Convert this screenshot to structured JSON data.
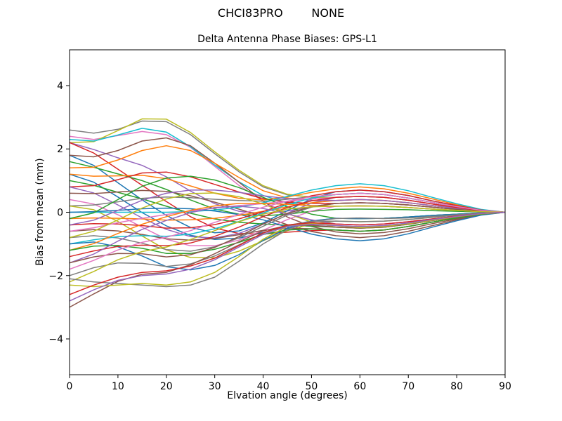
{
  "figure": {
    "suptitle": "CHCI83PRO        NONE",
    "background": "#ffffff"
  },
  "chart_data": {
    "type": "line",
    "title": "Delta Antenna Phase Biases: GPS-L1",
    "xlabel": "Elvation angle (degrees)",
    "ylabel": "Bias from mean (mm)",
    "xlim": [
      0,
      90
    ],
    "ylim": [
      -5.13,
      5.13
    ],
    "xticks": [
      0,
      10,
      20,
      30,
      40,
      50,
      60,
      70,
      80,
      90
    ],
    "yticks": [
      -4,
      -2,
      0,
      2,
      4
    ],
    "grid": false,
    "legend": "none",
    "axis_color": "#000000",
    "x": [
      0,
      5,
      10,
      15,
      20,
      25,
      30,
      35,
      40,
      45,
      50,
      55,
      60,
      65,
      70,
      75,
      80,
      85,
      90
    ],
    "series": [
      {
        "name": "curve-01",
        "color": "#7f7f7f",
        "values": [
          2.6,
          2.5,
          2.62,
          2.88,
          2.86,
          2.45,
          1.85,
          1.28,
          0.8,
          0.55,
          0.48,
          0.56,
          0.6,
          0.56,
          0.45,
          0.31,
          0.18,
          0.06,
          0
        ]
      },
      {
        "name": "curve-02",
        "color": "#e377c2",
        "values": [
          2.4,
          2.3,
          2.42,
          2.55,
          2.45,
          2.05,
          1.45,
          0.85,
          0.35,
          -0.05,
          -0.25,
          -0.37,
          -0.4,
          -0.37,
          -0.3,
          -0.21,
          -0.12,
          -0.04,
          0
        ]
      },
      {
        "name": "curve-03",
        "color": "#bcbd22",
        "values": [
          2.2,
          2.23,
          2.58,
          2.95,
          2.94,
          2.52,
          1.91,
          1.33,
          0.84,
          0.57,
          0.47,
          0.47,
          0.5,
          0.47,
          0.38,
          0.26,
          0.15,
          0.05,
          0
        ]
      },
      {
        "name": "curve-04",
        "color": "#9467bd",
        "values": [
          2.2,
          1.98,
          1.72,
          1.48,
          1.12,
          0.67,
          0.27,
          0.03,
          -0.04,
          0.04,
          0.18,
          0.28,
          0.3,
          0.28,
          0.23,
          0.16,
          0.09,
          0.03,
          0
        ]
      },
      {
        "name": "curve-05",
        "color": "#d62728",
        "values": [
          2.2,
          1.87,
          1.36,
          0.85,
          0.34,
          -0.14,
          -0.5,
          -0.67,
          -0.69,
          -0.63,
          -0.58,
          -0.56,
          -0.6,
          -0.56,
          -0.45,
          -0.31,
          -0.18,
          -0.06,
          0
        ]
      },
      {
        "name": "curve-06",
        "color": "#17becf",
        "values": [
          2.3,
          2.25,
          2.44,
          2.65,
          2.53,
          2.07,
          1.49,
          0.96,
          0.53,
          0.29,
          0.2,
          0.19,
          0.2,
          0.19,
          0.15,
          0.1,
          0.06,
          0.02,
          0
        ]
      },
      {
        "name": "curve-07",
        "color": "#1f77b4",
        "values": [
          1.8,
          1.48,
          0.93,
          0.39,
          -0.1,
          -0.48,
          -0.65,
          -0.59,
          -0.34,
          0.05,
          0.42,
          0.65,
          0.7,
          0.65,
          0.53,
          0.36,
          0.21,
          0.07,
          0
        ]
      },
      {
        "name": "curve-08",
        "color": "#8c564b",
        "values": [
          1.8,
          1.75,
          1.95,
          2.25,
          2.35,
          2.1,
          1.55,
          0.95,
          0.35,
          -0.15,
          -0.45,
          -0.62,
          -0.68,
          -0.64,
          -0.52,
          -0.36,
          -0.21,
          -0.07,
          0
        ]
      },
      {
        "name": "curve-09",
        "color": "#2ca02c",
        "values": [
          1.6,
          1.42,
          1.21,
          1.0,
          0.72,
          0.39,
          0.1,
          -0.06,
          -0.11,
          -0.06,
          0.03,
          0.09,
          0.1,
          0.09,
          0.08,
          0.05,
          0.03,
          0.01,
          0
        ]
      },
      {
        "name": "curve-10",
        "color": "#ff7f0e",
        "values": [
          1.4,
          1.42,
          1.65,
          1.95,
          2.1,
          1.95,
          1.55,
          1.1,
          0.68,
          0.45,
          0.38,
          0.37,
          0.4,
          0.37,
          0.3,
          0.21,
          0.12,
          0.04,
          0
        ]
      },
      {
        "name": "curve-11",
        "color": "#1f77b4",
        "values": [
          1.2,
          0.95,
          0.48,
          -0.01,
          -0.43,
          -0.73,
          -0.86,
          -0.82,
          -0.64,
          -0.44,
          -0.27,
          -0.19,
          -0.2,
          -0.19,
          -0.15,
          -0.1,
          -0.06,
          -0.02,
          0
        ]
      },
      {
        "name": "curve-12",
        "color": "#ff7f0e",
        "values": [
          1.2,
          1.14,
          1.15,
          1.17,
          1.06,
          0.83,
          0.6,
          0.44,
          0.39,
          0.48,
          0.63,
          0.74,
          0.8,
          0.74,
          0.6,
          0.42,
          0.24,
          0.08,
          0
        ]
      },
      {
        "name": "curve-13",
        "color": "#2ca02c",
        "values": [
          1.0,
          0.85,
          0.63,
          0.42,
          0.19,
          -0.03,
          -0.21,
          -0.32,
          -0.37,
          -0.41,
          -0.44,
          -0.47,
          -0.5,
          -0.47,
          -0.38,
          -0.26,
          -0.15,
          -0.05,
          0
        ]
      },
      {
        "name": "curve-14",
        "color": "#d62728",
        "values": [
          0.8,
          0.84,
          1.03,
          1.24,
          1.27,
          1.12,
          0.88,
          0.64,
          0.43,
          0.32,
          0.28,
          0.28,
          0.3,
          0.28,
          0.23,
          0.16,
          0.09,
          0.03,
          0
        ]
      },
      {
        "name": "curve-15",
        "color": "#9467bd",
        "values": [
          0.8,
          0.61,
          0.23,
          -0.18,
          -0.54,
          -0.77,
          -0.81,
          -0.67,
          -0.38,
          -0.03,
          0.29,
          0.47,
          0.5,
          0.47,
          0.38,
          0.26,
          0.15,
          0.05,
          0
        ]
      },
      {
        "name": "curve-16",
        "color": "#8c564b",
        "values": [
          0.6,
          0.59,
          0.64,
          0.69,
          0.66,
          0.52,
          0.32,
          0.1,
          -0.14,
          -0.39,
          -0.61,
          -0.74,
          -0.8,
          -0.74,
          -0.6,
          -0.42,
          -0.24,
          -0.08,
          0
        ]
      },
      {
        "name": "curve-17",
        "color": "#e377c2",
        "values": [
          0.4,
          0.26,
          -0.08,
          -0.47,
          -0.85,
          -1.06,
          -1.06,
          -0.88,
          -0.57,
          -0.23,
          0.04,
          0.19,
          0.2,
          0.19,
          0.15,
          0.1,
          0.06,
          0.02,
          0
        ]
      },
      {
        "name": "curve-18",
        "color": "#7f7f7f",
        "values": [
          0.2,
          0.23,
          0.33,
          0.44,
          0.48,
          0.46,
          0.41,
          0.37,
          0.35,
          0.41,
          0.49,
          0.56,
          0.6,
          0.56,
          0.45,
          0.31,
          0.18,
          0.06,
          0
        ]
      },
      {
        "name": "curve-19",
        "color": "#bcbd22",
        "values": [
          0.2,
          0.08,
          -0.29,
          -0.75,
          -1.19,
          -1.43,
          -1.44,
          -1.23,
          -0.9,
          -0.58,
          -0.37,
          -0.28,
          -0.3,
          -0.28,
          -0.23,
          -0.16,
          -0.09,
          -0.03,
          0
        ]
      },
      {
        "name": "curve-20",
        "color": "#17becf",
        "values": [
          0.0,
          0.0,
          0.0,
          0.0,
          0.0,
          0.02,
          0.07,
          0.16,
          0.3,
          0.5,
          0.7,
          0.84,
          0.9,
          0.84,
          0.68,
          0.47,
          0.27,
          0.09,
          0
        ]
      },
      {
        "name": "curve-21",
        "color": "#1f77b4",
        "values": [
          0.0,
          0.02,
          0.06,
          0.11,
          0.13,
          0.11,
          0.04,
          -0.07,
          -0.24,
          -0.47,
          -0.69,
          -0.84,
          -0.9,
          -0.84,
          -0.68,
          -0.47,
          -0.27,
          -0.09,
          0
        ]
      },
      {
        "name": "curve-22",
        "color": "#ff7f0e",
        "values": [
          -0.2,
          -0.18,
          -0.19,
          -0.21,
          -0.25,
          -0.24,
          -0.19,
          -0.1,
          0.03,
          0.17,
          0.3,
          0.37,
          0.4,
          0.37,
          0.3,
          0.21,
          0.12,
          0.04,
          0
        ]
      },
      {
        "name": "curve-23",
        "color": "#2ca02c",
        "values": [
          -0.2,
          -0.02,
          0.4,
          0.82,
          1.08,
          1.14,
          1.02,
          0.78,
          0.47,
          0.17,
          -0.06,
          -0.19,
          -0.2,
          -0.19,
          -0.15,
          -0.1,
          -0.06,
          -0.02,
          0
        ]
      },
      {
        "name": "curve-24",
        "color": "#d62728",
        "values": [
          -0.4,
          -0.36,
          -0.37,
          -0.42,
          -0.5,
          -0.49,
          -0.39,
          -0.21,
          0.02,
          0.29,
          0.52,
          0.65,
          0.7,
          0.65,
          0.53,
          0.36,
          0.21,
          0.07,
          0
        ]
      },
      {
        "name": "curve-25",
        "color": "#9467bd",
        "values": [
          -0.4,
          -0.25,
          0.06,
          0.38,
          0.6,
          0.7,
          0.7,
          0.63,
          0.52,
          0.43,
          0.38,
          0.37,
          0.4,
          0.37,
          0.3,
          0.21,
          0.12,
          0.04,
          0
        ]
      },
      {
        "name": "curve-26",
        "color": "#8c564b",
        "values": [
          -0.6,
          -0.55,
          -0.59,
          -0.7,
          -0.84,
          -0.88,
          -0.83,
          -0.71,
          -0.57,
          -0.51,
          -0.52,
          -0.56,
          -0.6,
          -0.56,
          -0.45,
          -0.31,
          -0.18,
          -0.06,
          0
        ]
      },
      {
        "name": "curve-27",
        "color": "#e377c2",
        "values": [
          -0.6,
          -0.49,
          -0.33,
          -0.19,
          -0.07,
          0.04,
          0.13,
          0.21,
          0.27,
          0.35,
          0.42,
          0.47,
          0.5,
          0.47,
          0.38,
          0.26,
          0.15,
          0.05,
          0
        ]
      },
      {
        "name": "curve-28",
        "color": "#7f7f7f",
        "values": [
          -0.8,
          -0.74,
          -0.81,
          -0.98,
          -1.18,
          -1.23,
          -1.09,
          -0.81,
          -0.44,
          -0.09,
          0.16,
          0.28,
          0.3,
          0.28,
          0.23,
          0.16,
          0.09,
          0.03,
          0
        ]
      },
      {
        "name": "curve-29",
        "color": "#bcbd22",
        "values": [
          -0.8,
          -0.6,
          -0.24,
          0.13,
          0.42,
          0.59,
          0.61,
          0.49,
          0.26,
          -0.04,
          -0.31,
          -0.47,
          -0.5,
          -0.47,
          -0.38,
          -0.26,
          -0.15,
          -0.05,
          0
        ]
      },
      {
        "name": "curve-30",
        "color": "#17becf",
        "values": [
          -1.0,
          -0.87,
          -0.77,
          -0.74,
          -0.76,
          -0.69,
          -0.52,
          -0.29,
          -0.02,
          0.24,
          0.45,
          0.56,
          0.6,
          0.56,
          0.45,
          0.31,
          0.18,
          0.06,
          0
        ]
      },
      {
        "name": "curve-31",
        "color": "#1f77b4",
        "values": [
          -1.0,
          -0.94,
          -1.09,
          -1.38,
          -1.72,
          -1.82,
          -1.68,
          -1.34,
          -0.89,
          -0.51,
          -0.28,
          -0.19,
          -0.2,
          -0.19,
          -0.15,
          -0.1,
          -0.06,
          -0.02,
          0
        ]
      },
      {
        "name": "curve-32",
        "color": "#ff7f0e",
        "values": [
          -1.2,
          -0.99,
          -0.67,
          -0.38,
          -0.14,
          0.06,
          0.2,
          0.28,
          0.28,
          0.25,
          0.21,
          0.19,
          0.2,
          0.19,
          0.15,
          0.1,
          0.06,
          0.02,
          0
        ]
      },
      {
        "name": "curve-33",
        "color": "#2ca02c",
        "values": [
          -1.2,
          -1.07,
          -1.05,
          -1.14,
          -1.3,
          -1.3,
          -1.17,
          -0.95,
          -0.7,
          -0.56,
          -0.53,
          -0.56,
          -0.6,
          -0.56,
          -0.45,
          -0.31,
          -0.18,
          -0.06,
          0
        ]
      },
      {
        "name": "curve-34",
        "color": "#d62728",
        "values": [
          -1.4,
          -1.22,
          -1.08,
          -1.04,
          -1.06,
          -0.97,
          -0.76,
          -0.47,
          -0.14,
          0.15,
          0.36,
          0.47,
          0.5,
          0.47,
          0.38,
          0.26,
          0.15,
          0.05,
          0
        ]
      },
      {
        "name": "curve-35",
        "color": "#9467bd",
        "values": [
          -1.6,
          -1.32,
          -0.91,
          -0.54,
          -0.26,
          -0.01,
          0.15,
          0.19,
          0.12,
          -0.05,
          -0.24,
          -0.37,
          -0.4,
          -0.37,
          -0.3,
          -0.21,
          -0.12,
          -0.04,
          0
        ]
      },
      {
        "name": "curve-36",
        "color": "#8c564b",
        "values": [
          -1.6,
          -1.41,
          -1.3,
          -1.31,
          -1.41,
          -1.34,
          -1.11,
          -0.77,
          -0.37,
          -0.04,
          0.18,
          0.28,
          0.3,
          0.28,
          0.23,
          0.16,
          0.09,
          0.03,
          0
        ]
      },
      {
        "name": "curve-37",
        "color": "#e377c2",
        "values": [
          -1.8,
          -1.52,
          -1.19,
          -0.95,
          -0.79,
          -0.58,
          -0.32,
          -0.07,
          0.16,
          0.35,
          0.49,
          0.56,
          0.6,
          0.56,
          0.45,
          0.31,
          0.18,
          0.06,
          0
        ]
      },
      {
        "name": "curve-38",
        "color": "#7f7f7f",
        "values": [
          -2.0,
          -1.75,
          -1.6,
          -1.61,
          -1.71,
          -1.63,
          -1.38,
          -1.03,
          -0.66,
          -0.41,
          -0.29,
          -0.28,
          -0.3,
          -0.28,
          -0.23,
          -0.16,
          -0.09,
          -0.03,
          0
        ]
      },
      {
        "name": "curve-39",
        "color": "#bcbd22",
        "values": [
          -2.2,
          -1.87,
          -1.5,
          -1.24,
          -1.1,
          -0.86,
          -0.58,
          -0.3,
          -0.06,
          0.1,
          0.17,
          0.19,
          0.2,
          0.19,
          0.15,
          0.1,
          0.06,
          0.02,
          0
        ]
      },
      {
        "name": "curve-40",
        "color": "#8c564b",
        "values": [
          -3.0,
          -2.58,
          -2.18,
          -1.96,
          -1.9,
          -1.66,
          -1.31,
          -0.93,
          -0.59,
          -0.42,
          -0.41,
          -0.47,
          -0.5,
          -0.47,
          -0.38,
          -0.26,
          -0.15,
          -0.05,
          0
        ]
      },
      {
        "name": "curve-41",
        "color": "#7f7f7f",
        "values": [
          -2.1,
          -2.2,
          -2.25,
          -2.3,
          -2.35,
          -2.3,
          -2.05,
          -1.55,
          -1.0,
          -0.55,
          -0.3,
          -0.2,
          -0.18,
          -0.2,
          -0.18,
          -0.13,
          -0.08,
          -0.03,
          0
        ]
      },
      {
        "name": "curve-42",
        "color": "#bcbd22",
        "values": [
          -2.3,
          -2.35,
          -2.3,
          -2.25,
          -2.3,
          -2.2,
          -1.9,
          -1.4,
          -0.85,
          -0.45,
          -0.35,
          -0.42,
          -0.48,
          -0.45,
          -0.36,
          -0.25,
          -0.14,
          -0.05,
          0
        ]
      },
      {
        "name": "curve-43",
        "color": "#d62728",
        "values": [
          -2.6,
          -2.3,
          -2.05,
          -1.9,
          -1.85,
          -1.7,
          -1.45,
          -1.05,
          -0.65,
          -0.4,
          -0.33,
          -0.37,
          -0.4,
          -0.37,
          -0.3,
          -0.21,
          -0.12,
          -0.04,
          0
        ]
      },
      {
        "name": "curve-44",
        "color": "#9467bd",
        "values": [
          -2.8,
          -2.45,
          -2.15,
          -2.0,
          -1.95,
          -1.8,
          -1.5,
          -1.1,
          -0.7,
          -0.45,
          -0.38,
          -0.42,
          -0.45,
          -0.42,
          -0.34,
          -0.23,
          -0.13,
          -0.04,
          0
        ]
      }
    ]
  }
}
